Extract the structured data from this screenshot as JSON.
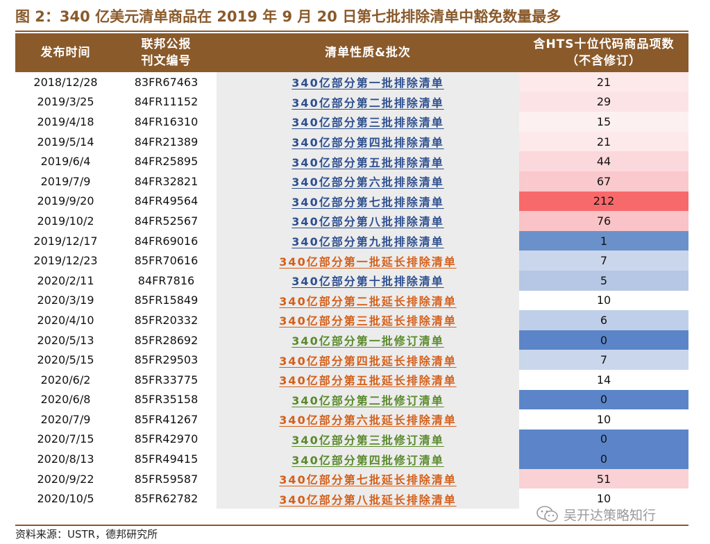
{
  "title": "图 2：340 亿美元清单商品在 2019 年 9 月 20 日第七批排除清单中豁免数量最多",
  "source": "资料来源：USTR，德邦研究所",
  "watermark": "吴开达策略知行",
  "colors": {
    "header_bg": "#8a5a2b",
    "link_blue": "#2e4f8f",
    "link_orange": "#d45f1a",
    "link_green": "#5a8a2c"
  },
  "table": {
    "headers": [
      "发布时间",
      "联邦公报\n刊文编号",
      "清单性质&批次",
      "含HTS十位代码商品项数\n（不含修订）"
    ],
    "rows": [
      {
        "date": "2018/12/28",
        "doc": "83FR67463",
        "name": "340亿部分第一批排除清单",
        "type": "blue",
        "count": "21",
        "bg": "#fde9ea"
      },
      {
        "date": "2019/3/25",
        "doc": "84FR11152",
        "name": "340亿部分第二批排除清单",
        "type": "blue",
        "count": "29",
        "bg": "#fce3e5"
      },
      {
        "date": "2019/4/18",
        "doc": "84FR16310",
        "name": "340亿部分第三批排除清单",
        "type": "blue",
        "count": "15",
        "bg": "#fdf0f1"
      },
      {
        "date": "2019/5/14",
        "doc": "84FR21389",
        "name": "340亿部分第四批排除清单",
        "type": "blue",
        "count": "21",
        "bg": "#fde9ea"
      },
      {
        "date": "2019/6/4",
        "doc": "84FR25895",
        "name": "340亿部分第五批排除清单",
        "type": "blue",
        "count": "44",
        "bg": "#fbd8db"
      },
      {
        "date": "2019/7/9",
        "doc": "84FR32821",
        "name": "340亿部分第六批排除清单",
        "type": "blue",
        "count": "67",
        "bg": "#f9c9cd"
      },
      {
        "date": "2019/9/20",
        "doc": "84FR49564",
        "name": "340亿部分第七批排除清单",
        "type": "blue",
        "count": "212",
        "bg": "#f8696b"
      },
      {
        "date": "2019/10/2",
        "doc": "84FR52567",
        "name": "340亿部分第八批排除清单",
        "type": "blue",
        "count": "76",
        "bg": "#f9c3c7"
      },
      {
        "date": "2019/12/17",
        "doc": "84FR69016",
        "name": "340亿部分第九批排除清单",
        "type": "blue",
        "count": "1",
        "bg": "#6b91cb"
      },
      {
        "date": "2019/12/23",
        "doc": "85FR70616",
        "name": "340亿部分第一批延长排除清单",
        "type": "orange",
        "count": "7",
        "bg": "#c9d6ec"
      },
      {
        "date": "2020/2/11",
        "doc": "84FR7816",
        "name": "340亿部分第十批排除清单",
        "type": "blue",
        "count": "5",
        "bg": "#b6c7e5"
      },
      {
        "date": "2020/3/19",
        "doc": "85FR15849",
        "name": "340亿部分第二批延长排除清单",
        "type": "orange",
        "count": "10",
        "bg": "#ffffff"
      },
      {
        "date": "2020/4/10",
        "doc": "85FR20332",
        "name": "340亿部分第三批延长排除清单",
        "type": "orange",
        "count": "6",
        "bg": "#c0cfe9"
      },
      {
        "date": "2020/5/13",
        "doc": "85FR28692",
        "name": "340亿部分第一批修订清单",
        "type": "green",
        "count": "0",
        "bg": "#5b85c8"
      },
      {
        "date": "2020/5/15",
        "doc": "85FR29503",
        "name": "340亿部分第四批延长排除清单",
        "type": "orange",
        "count": "7",
        "bg": "#c9d6ec"
      },
      {
        "date": "2020/6/2",
        "doc": "85FR33775",
        "name": "340亿部分第五批延长排除清单",
        "type": "orange",
        "count": "14",
        "bg": "#ffffff"
      },
      {
        "date": "2020/6/8",
        "doc": "85FR35158",
        "name": "340亿部分第二批修订清单",
        "type": "green",
        "count": "0",
        "bg": "#5b85c8"
      },
      {
        "date": "2020/7/9",
        "doc": "85FR41267",
        "name": "340亿部分第六批延长排除清单",
        "type": "orange",
        "count": "10",
        "bg": "#ffffff"
      },
      {
        "date": "2020/7/15",
        "doc": "85FR42970",
        "name": "340亿部分第三批修订清单",
        "type": "green",
        "count": "0",
        "bg": "#5b85c8"
      },
      {
        "date": "2020/8/13",
        "doc": "85FR49415",
        "name": "340亿部分第四批修订清单",
        "type": "green",
        "count": "0",
        "bg": "#5b85c8"
      },
      {
        "date": "2020/9/22",
        "doc": "85FR59587",
        "name": "340亿部分第七批延长排除清单",
        "type": "orange",
        "count": "51",
        "bg": "#fad1d4"
      },
      {
        "date": "2020/10/5",
        "doc": "85FR62782",
        "name": "340亿部分第八批延长排除清单",
        "type": "orange",
        "count": "10",
        "bg": "#ffffff"
      }
    ]
  }
}
